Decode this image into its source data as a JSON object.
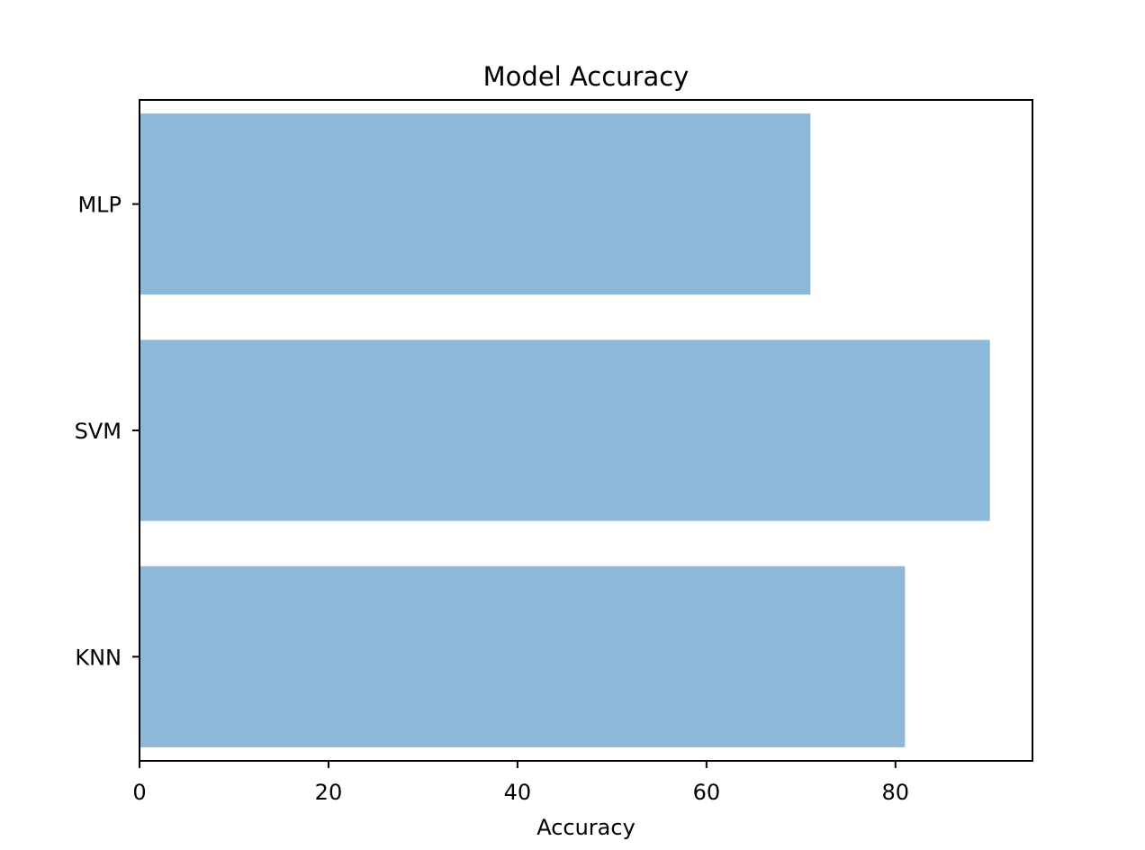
{
  "chart_data": {
    "type": "bar",
    "orientation": "horizontal",
    "title": "Model Accuracy",
    "xlabel": "Accuracy",
    "ylabel": "",
    "categories": [
      "KNN",
      "SVM",
      "MLP"
    ],
    "values": [
      81,
      90,
      71
    ],
    "xlim": [
      0,
      94.5
    ],
    "xticks": [
      0,
      20,
      40,
      60,
      80
    ],
    "xtick_labels": [
      "0",
      "20",
      "40",
      "60",
      "80"
    ],
    "bar_color": "#8db8d8",
    "grid": false,
    "legend": "none"
  }
}
